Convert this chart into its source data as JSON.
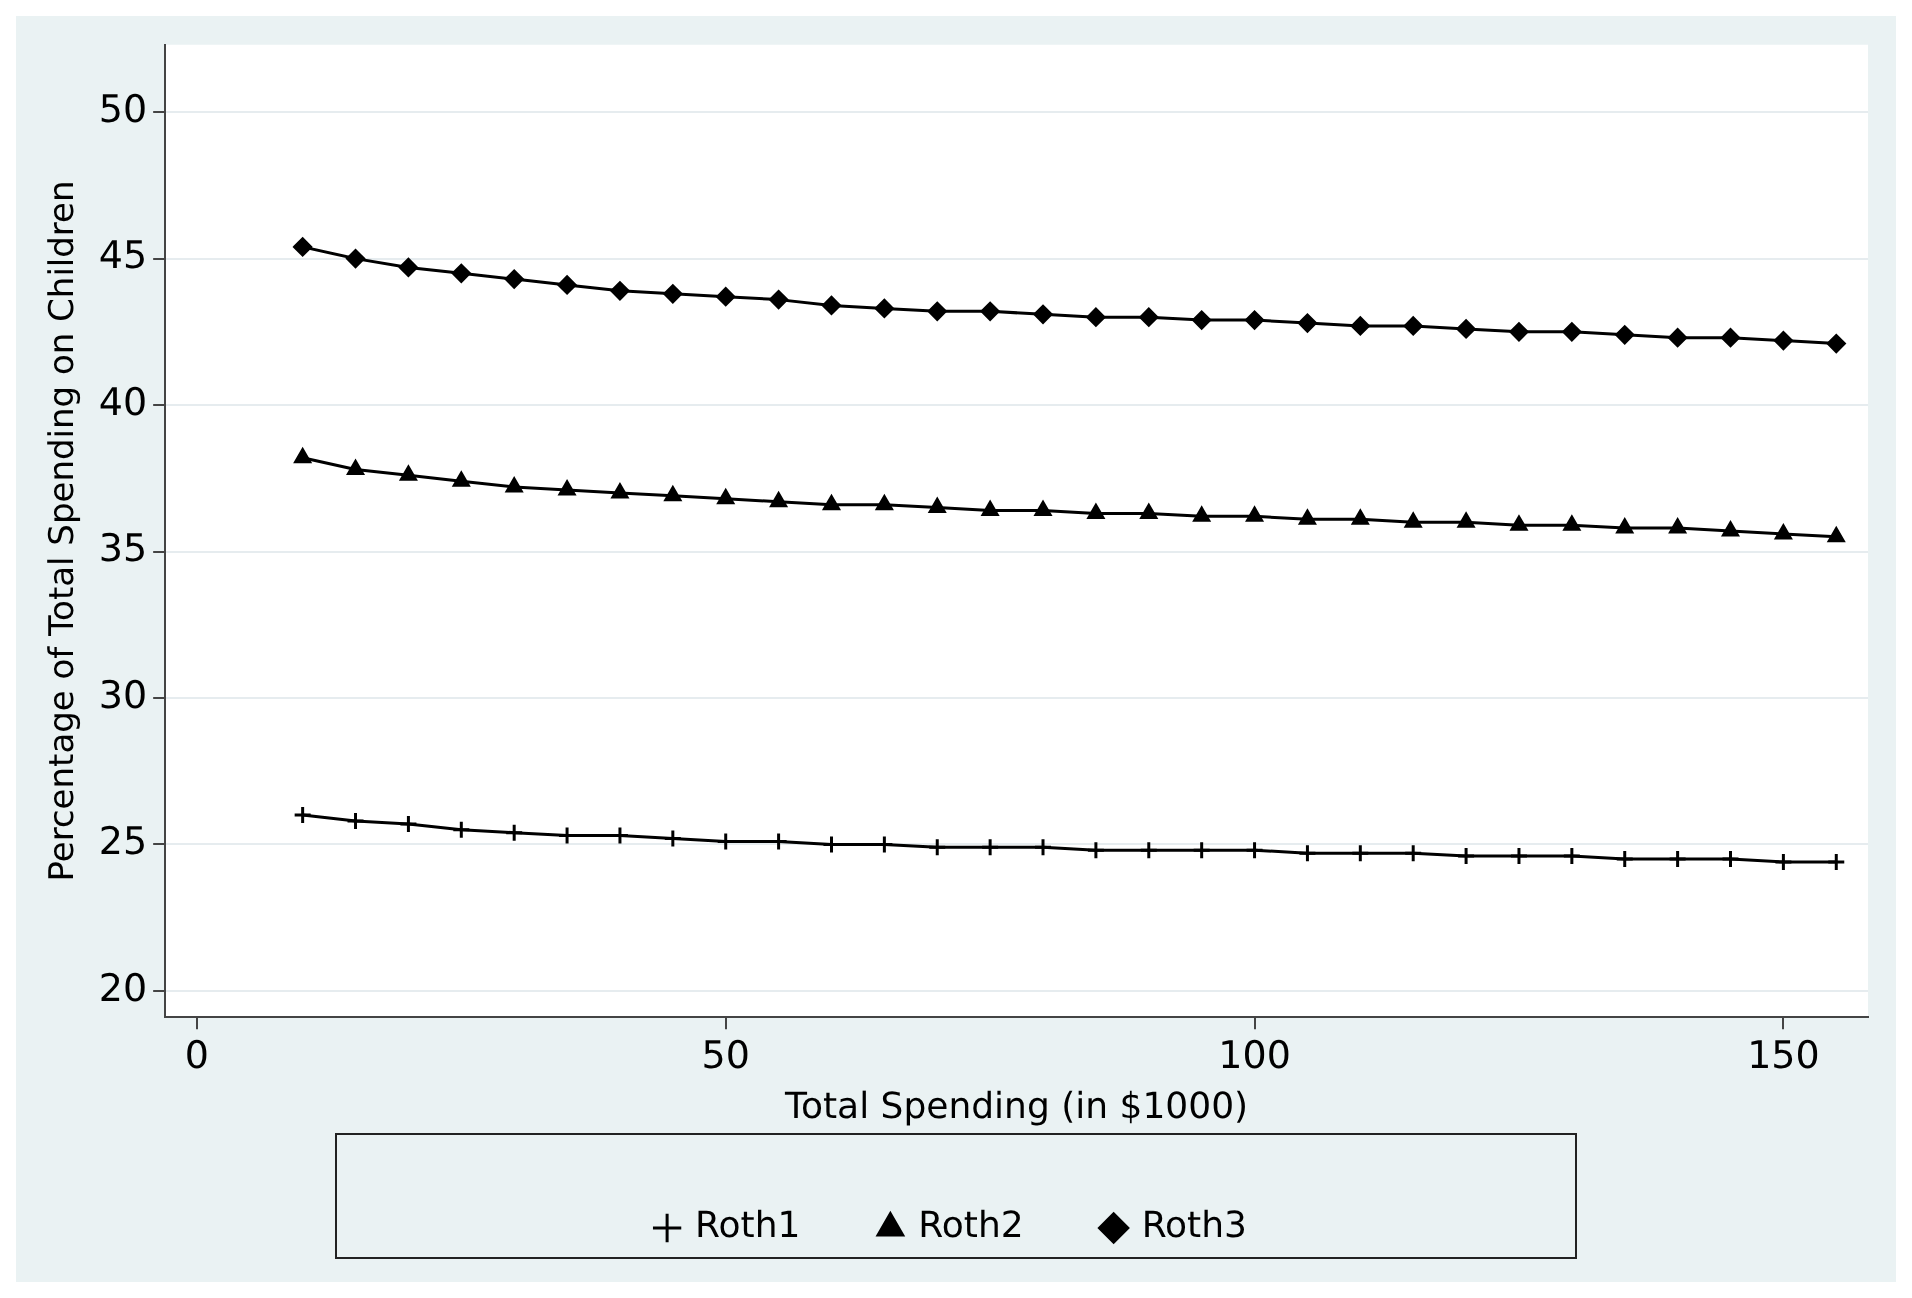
{
  "chart_data": {
    "type": "line",
    "xlabel": "Total Spending (in $1000)",
    "ylabel": "Percentage of Total Spending on Children",
    "x": [
      10,
      15,
      20,
      25,
      30,
      35,
      40,
      45,
      50,
      55,
      60,
      65,
      70,
      75,
      80,
      85,
      90,
      95,
      100,
      105,
      110,
      115,
      120,
      125,
      130,
      135,
      140,
      145,
      150,
      155
    ],
    "series": [
      {
        "name": "Roth1",
        "color": "#000000",
        "marker": "cross",
        "values": [
          26.0,
          25.8,
          25.7,
          25.5,
          25.4,
          25.3,
          25.3,
          25.2,
          25.1,
          25.1,
          25.0,
          25.0,
          24.9,
          24.9,
          24.9,
          24.8,
          24.8,
          24.8,
          24.8,
          24.7,
          24.7,
          24.7,
          24.6,
          24.6,
          24.6,
          24.5,
          24.5,
          24.5,
          24.4,
          24.4
        ]
      },
      {
        "name": "Roth2",
        "color": "#000000",
        "marker": "triangle",
        "values": [
          38.2,
          37.8,
          37.6,
          37.4,
          37.2,
          37.1,
          37.0,
          36.9,
          36.8,
          36.7,
          36.6,
          36.6,
          36.5,
          36.4,
          36.4,
          36.3,
          36.3,
          36.2,
          36.2,
          36.1,
          36.1,
          36.0,
          36.0,
          35.9,
          35.9,
          35.8,
          35.8,
          35.7,
          35.6,
          35.5
        ]
      },
      {
        "name": "Roth3",
        "color": "#000000",
        "marker": "diamond",
        "values": [
          45.4,
          45.0,
          44.7,
          44.5,
          44.3,
          44.1,
          43.9,
          43.8,
          43.7,
          43.6,
          43.4,
          43.3,
          43.2,
          43.2,
          43.1,
          43.0,
          43.0,
          42.9,
          42.9,
          42.8,
          42.7,
          42.7,
          42.6,
          42.5,
          42.5,
          42.4,
          42.3,
          42.3,
          42.2,
          42.1
        ]
      }
    ],
    "xlim": [
      -3,
      158
    ],
    "xticks": [
      0,
      50,
      100,
      150
    ],
    "ylim": [
      19.1,
      52.3
    ],
    "yticks": [
      20,
      25,
      30,
      35,
      40,
      45,
      50
    ],
    "grid": "y",
    "legend": "bottom",
    "line_style": "solid"
  }
}
